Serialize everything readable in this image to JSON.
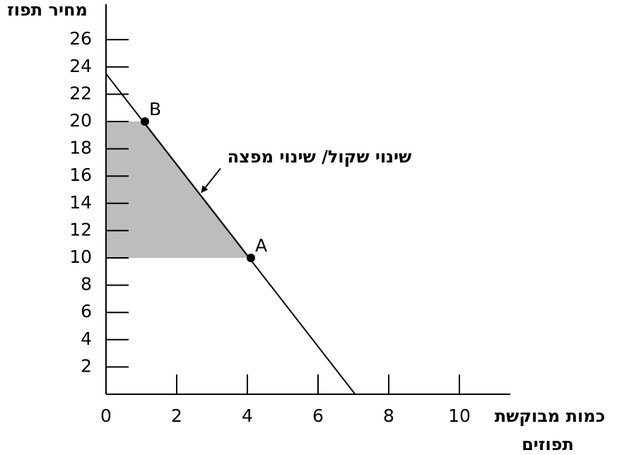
{
  "chart_data": {
    "type": "line",
    "ylabel": "מחיר תפוז",
    "xlabel": [
      "כמות מבוקשת",
      "תפוזים"
    ],
    "xlim": [
      0,
      11.44
    ],
    "ylim": [
      0,
      28.6
    ],
    "xticks": [
      0,
      2,
      4,
      6,
      8,
      10
    ],
    "yticks": [
      2,
      4,
      6,
      8,
      10,
      12,
      14,
      16,
      18,
      20,
      22,
      24,
      26
    ],
    "series": [
      {
        "x": [
          0,
          7.05
        ],
        "values": [
          23.5,
          0
        ],
        "color": "#000000"
      }
    ],
    "shaded": {
      "x": [
        0,
        1.1,
        4.1,
        0
      ],
      "y": [
        20,
        20,
        10,
        10
      ],
      "color": "#bdbdbd"
    },
    "points": [
      {
        "label": "B",
        "x": 1.1,
        "y": 20
      },
      {
        "label": "A",
        "x": 4.1,
        "y": 10
      }
    ],
    "annotation": {
      "text": "שינוי שקול/ שינוי מפצה",
      "x": 2.7,
      "y": 14.8
    }
  }
}
